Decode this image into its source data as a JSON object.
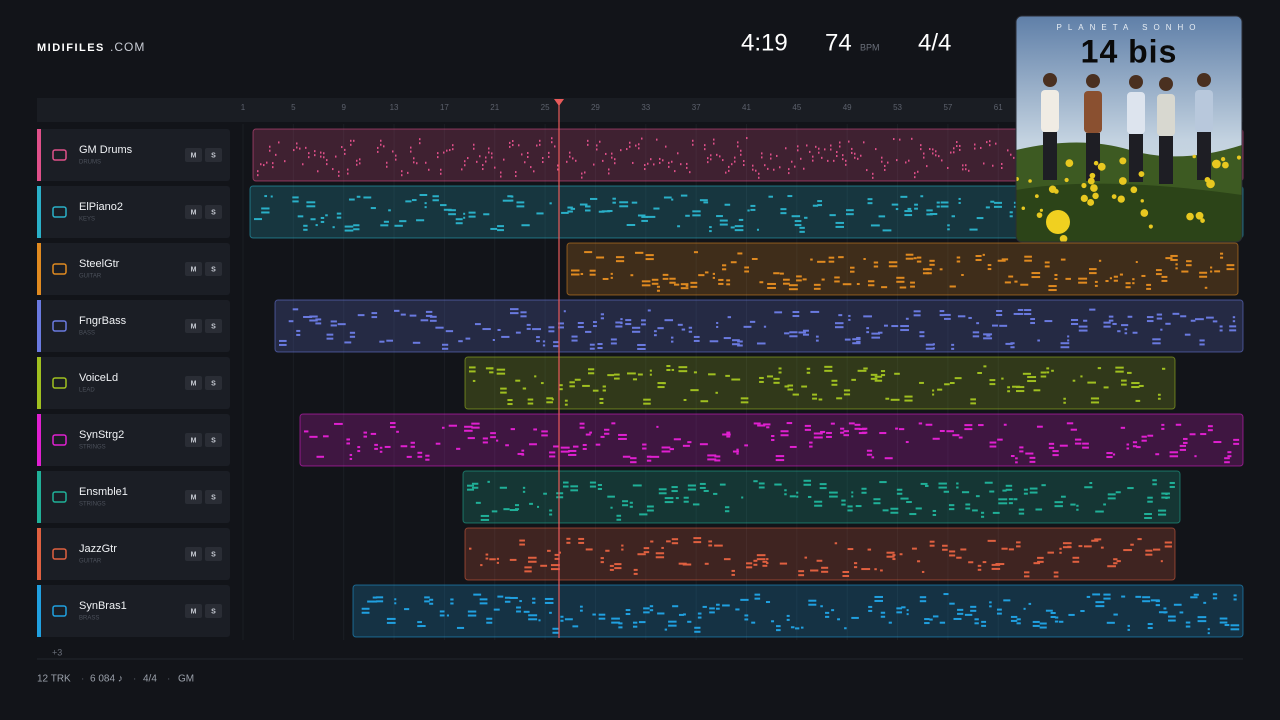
{
  "header": {
    "brand": "MIDIFILES",
    "brand_suffix": ".COM",
    "time": "4:19",
    "tempo": "74",
    "tempo_unit": "BPM",
    "meter": "4/4"
  },
  "ruler": {
    "bars": [
      1,
      5,
      9,
      13,
      17,
      21,
      25,
      29,
      33,
      37,
      41,
      45,
      49,
      53,
      57,
      61
    ]
  },
  "tracks": [
    {
      "name": "GM Drums",
      "group": "DRUMS",
      "color": "#e0508a",
      "mute": "M",
      "solo": "S"
    },
    {
      "name": "ElPiano2",
      "group": "KEYS",
      "color": "#2ab0c8",
      "mute": "M",
      "solo": "S"
    },
    {
      "name": "SteelGtr",
      "group": "GUITAR",
      "color": "#e08a20",
      "mute": "M",
      "solo": "S"
    },
    {
      "name": "FngrBass",
      "group": "BASS",
      "color": "#6a7ae0",
      "mute": "M",
      "solo": "S"
    },
    {
      "name": "VoiceLd",
      "group": "LEAD",
      "color": "#a0c020",
      "mute": "M",
      "solo": "S"
    },
    {
      "name": "SynStrg2",
      "group": "STRINGS",
      "color": "#e020d0",
      "mute": "M",
      "solo": "S"
    },
    {
      "name": "Ensmble1",
      "group": "STRINGS",
      "color": "#20b098",
      "mute": "M",
      "solo": "S"
    },
    {
      "name": "JazzGtr",
      "group": "GUITAR",
      "color": "#e06040",
      "mute": "M",
      "solo": "S"
    },
    {
      "name": "SynBras1",
      "group": "BRASS",
      "color": "#20a0e0",
      "mute": "M",
      "solo": "S"
    }
  ],
  "more_tracks": "+3",
  "footer": {
    "items": [
      "12 TRK",
      "6 084 ♪",
      "4/4",
      "GM"
    ],
    "separator": "·"
  },
  "album": {
    "title": "PLANETA SONHO",
    "artist": "14 bis"
  }
}
